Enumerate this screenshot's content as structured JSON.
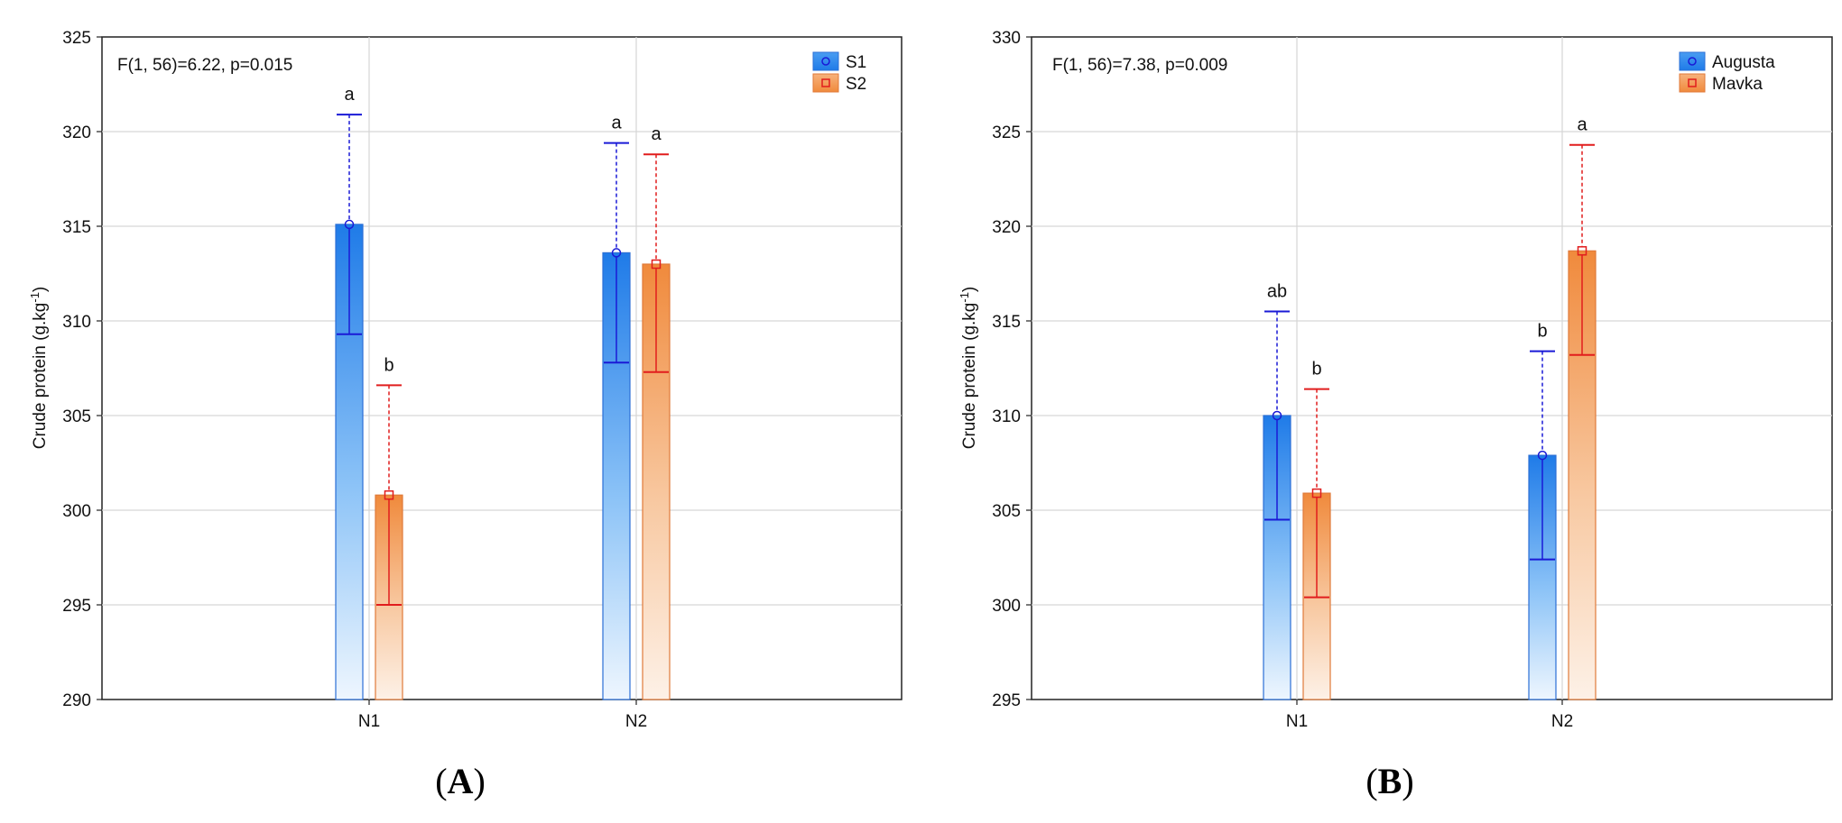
{
  "chart_data": [
    {
      "type": "bar",
      "panel_label_open": "(",
      "panel_letter": "A",
      "panel_label_close": ")",
      "annotation": "F(1, 56)=6.22, p=0.015",
      "ylabel_main": "Crude protein (g.kg",
      "ylabel_sup": "-1",
      "ylabel_close": ")",
      "ylim": [
        290,
        325
      ],
      "yticks": [
        290,
        295,
        300,
        305,
        310,
        315,
        320,
        325
      ],
      "categories": [
        "N1",
        "N2"
      ],
      "legend_position": "top-right",
      "series": [
        {
          "name": "S1",
          "color": "#1f7be8",
          "marker": "circle",
          "values": [
            315.1,
            313.6
          ],
          "ci_low": [
            309.3,
            307.8
          ],
          "ci_high": [
            320.9,
            319.4
          ],
          "letters": [
            "a",
            "a"
          ]
        },
        {
          "name": "S2",
          "color": "#f08a3c",
          "marker": "square",
          "values": [
            300.8,
            313.0
          ],
          "ci_low": [
            295.0,
            307.3
          ],
          "ci_high": [
            306.6,
            318.8
          ],
          "letters": [
            "b",
            "a"
          ]
        }
      ]
    },
    {
      "type": "bar",
      "panel_label_open": "(",
      "panel_letter": "B",
      "panel_label_close": ")",
      "annotation": "F(1, 56)=7.38, p=0.009",
      "ylabel_main": "Crude protein (g.kg",
      "ylabel_sup": "-1",
      "ylabel_close": ")",
      "ylim": [
        295,
        330
      ],
      "yticks": [
        295,
        300,
        305,
        310,
        315,
        320,
        325,
        330
      ],
      "categories": [
        "N1",
        "N2"
      ],
      "legend_position": "top-right",
      "series": [
        {
          "name": "Augusta",
          "color": "#1f7be8",
          "marker": "circle",
          "values": [
            310.0,
            307.9
          ],
          "ci_low": [
            304.5,
            302.4
          ],
          "ci_high": [
            315.5,
            313.4
          ],
          "letters": [
            "ab",
            "b"
          ]
        },
        {
          "name": "Mavka",
          "color": "#f08a3c",
          "marker": "square",
          "values": [
            305.9,
            318.7
          ],
          "ci_low": [
            300.4,
            313.2
          ],
          "ci_high": [
            311.4,
            324.3
          ],
          "letters": [
            "b",
            "a"
          ]
        }
      ]
    }
  ]
}
